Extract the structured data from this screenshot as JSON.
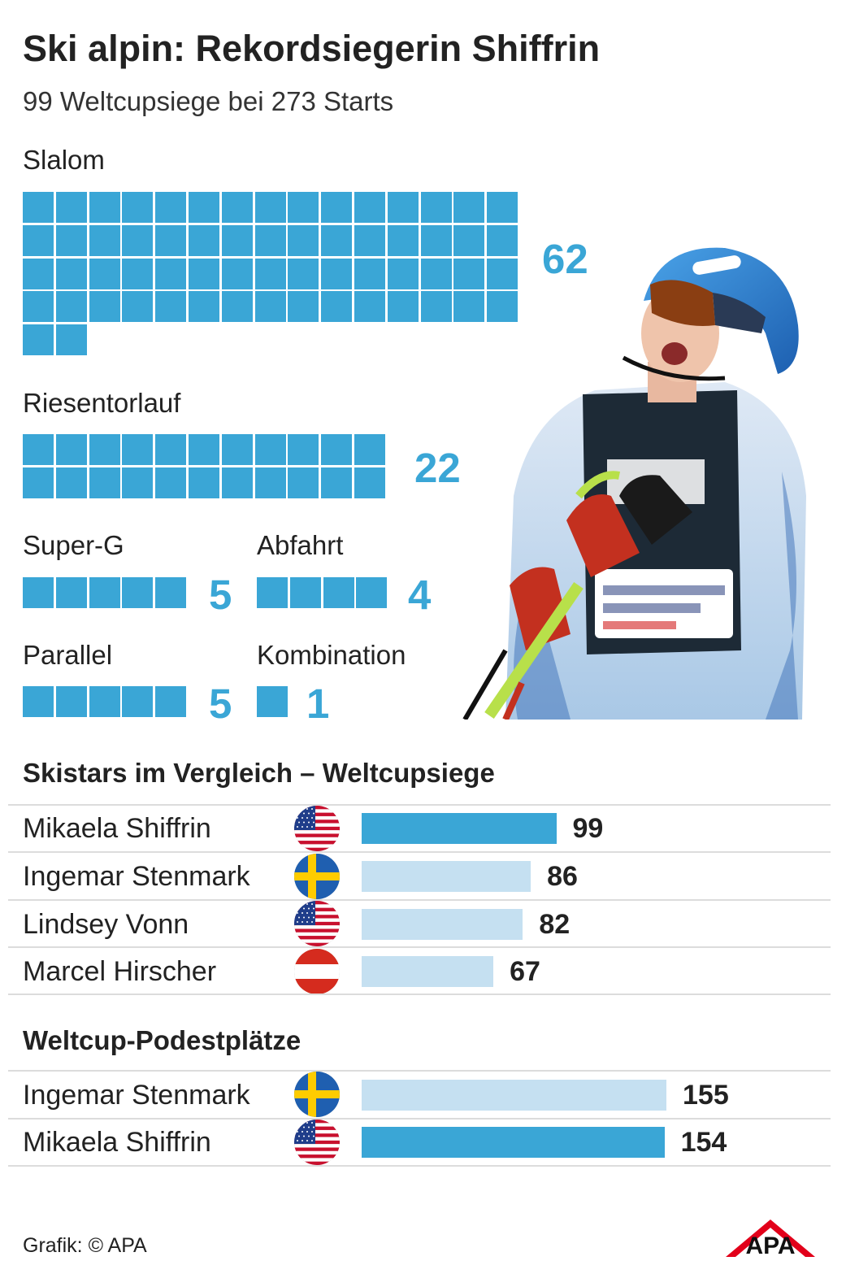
{
  "title": "Ski alpin: Rekordsiegerin Shiffrin",
  "subtitle": "99 Weltcupsiege bei 273 Starts",
  "colors": {
    "tile": "#3aa6d6",
    "highlight_bar": "#3aa6d6",
    "compare_bar": "#c5e0f1",
    "number": "#3aa6d6"
  },
  "disciplines": [
    {
      "label": "Slalom",
      "count": 62,
      "count_label": "62"
    },
    {
      "label": "Riesentorlauf",
      "count": 22,
      "count_label": "22"
    },
    {
      "label": "Super-G",
      "count": 5,
      "count_label": "5"
    },
    {
      "label": "Abfahrt",
      "count": 4,
      "count_label": "4"
    },
    {
      "label": "Parallel",
      "count": 5,
      "count_label": "5"
    },
    {
      "label": "Kombination",
      "count": 1,
      "count_label": "1"
    }
  ],
  "comparison": {
    "title": "Skistars im Vergleich – Weltcupsiege",
    "rows": [
      {
        "name": "Mikaela Shiffrin",
        "flag": "usa-flag-icon",
        "value": 99,
        "value_label": "99",
        "highlight": true
      },
      {
        "name": "Ingemar Stenmark",
        "flag": "sweden-flag-icon",
        "value": 86,
        "value_label": "86",
        "highlight": false
      },
      {
        "name": "Lindsey Vonn",
        "flag": "usa-flag-icon",
        "value": 82,
        "value_label": "82",
        "highlight": false
      },
      {
        "name": "Marcel Hirscher",
        "flag": "austria-flag-icon",
        "value": 67,
        "value_label": "67",
        "highlight": false
      }
    ]
  },
  "podiums": {
    "title": "Weltcup-Podestplätze",
    "rows": [
      {
        "name": "Ingemar Stenmark",
        "flag": "sweden-flag-icon",
        "value": 155,
        "value_label": "155",
        "highlight": false
      },
      {
        "name": "Mikaela Shiffrin",
        "flag": "usa-flag-icon",
        "value": 154,
        "value_label": "154",
        "highlight": true
      }
    ]
  },
  "chart_data": [
    {
      "type": "bar",
      "title": "99 Weltcupsiege bei 273 Starts",
      "categories": [
        "Slalom",
        "Riesentorlauf",
        "Super-G",
        "Abfahrt",
        "Parallel",
        "Kombination"
      ],
      "values": [
        62,
        22,
        5,
        4,
        5,
        1
      ]
    },
    {
      "type": "bar",
      "title": "Skistars im Vergleich – Weltcupsiege",
      "categories": [
        "Mikaela Shiffrin",
        "Ingemar Stenmark",
        "Lindsey Vonn",
        "Marcel Hirscher"
      ],
      "values": [
        99,
        86,
        82,
        67
      ]
    },
    {
      "type": "bar",
      "title": "Weltcup-Podestplätze",
      "categories": [
        "Ingemar Stenmark",
        "Mikaela Shiffrin"
      ],
      "values": [
        155,
        154
      ]
    }
  ],
  "footer": "Grafik: © APA",
  "logo_text": "APA"
}
